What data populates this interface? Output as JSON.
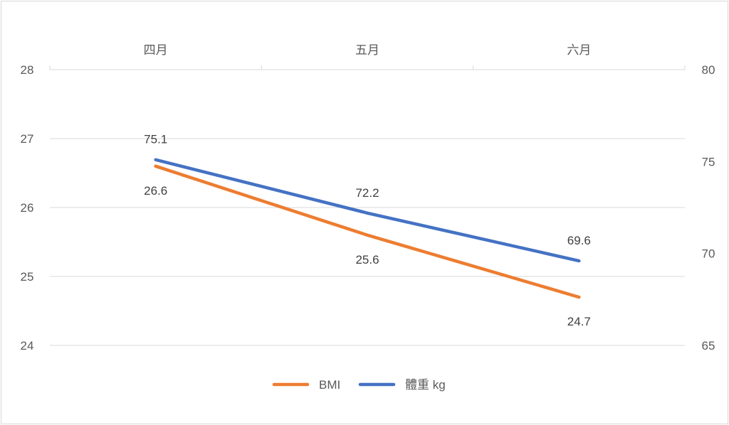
{
  "chart_data": {
    "type": "line",
    "title": "",
    "categories": [
      "四月",
      "五月",
      "六月"
    ],
    "series": [
      {
        "name": "BMI",
        "axis": "left",
        "color": "#ED7D31",
        "values": [
          26.6,
          25.6,
          24.7
        ]
      },
      {
        "name": "體重 kg",
        "axis": "right",
        "color": "#4472C4",
        "values": [
          75.1,
          72.2,
          69.6
        ]
      }
    ],
    "y_left": {
      "min": 24,
      "max": 28,
      "ticks": [
        "28",
        "27",
        "26",
        "25",
        "24"
      ]
    },
    "y_right": {
      "min": 65,
      "max": 80,
      "ticks": [
        "80",
        "75",
        "70",
        "65"
      ]
    },
    "xaxis_position": "top",
    "grid": true,
    "legend_position": "bottom",
    "data_labels": {
      "BMI": [
        "26.6",
        "25.6",
        "24.7"
      ],
      "體重 kg": [
        "75.1",
        "72.2",
        "69.6"
      ]
    }
  },
  "legend": {
    "items": [
      {
        "label": "BMI",
        "color": "#ED7D31"
      },
      {
        "label": "體重 kg",
        "color": "#4472C4"
      }
    ]
  }
}
